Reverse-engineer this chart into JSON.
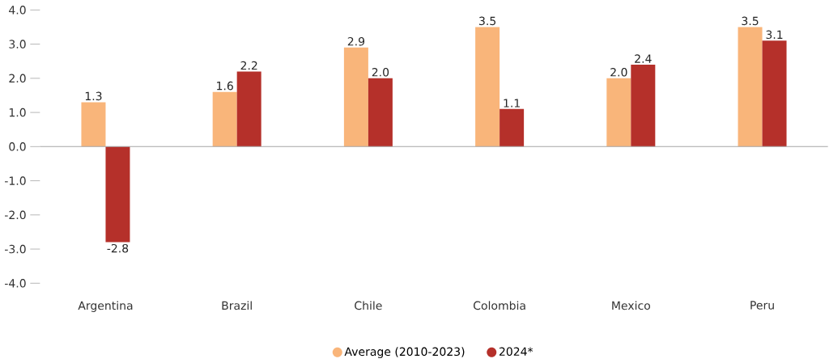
{
  "chart_data": {
    "type": "bar",
    "categories": [
      "Argentina",
      "Brazil",
      "Chile",
      "Colombia",
      "Mexico",
      "Peru"
    ],
    "series": [
      {
        "name": "Average (2010-2023)",
        "color": "#f9b57a",
        "values": [
          1.3,
          1.6,
          2.9,
          3.5,
          2.0,
          3.5
        ],
        "value_labels": [
          "1.3",
          "1.6",
          "2.9",
          "3.5",
          "2.0",
          "3.5"
        ]
      },
      {
        "name": "2024*",
        "color": "#b5302a",
        "values": [
          -2.8,
          2.2,
          2.0,
          1.1,
          2.4,
          3.1
        ],
        "value_labels": [
          "-2.8",
          "2.2",
          "2.0",
          "1.1",
          "2.4",
          "3.1"
        ]
      }
    ],
    "ylim": [
      -4.0,
      4.0
    ],
    "yticks": [
      {
        "value": -4,
        "label": "-4.0"
      },
      {
        "value": -3,
        "label": "-3.0"
      },
      {
        "value": -2,
        "label": "-2.0"
      },
      {
        "value": -1,
        "label": "-1.0"
      },
      {
        "value": 0,
        "label": "0.0"
      },
      {
        "value": 1,
        "label": "1.0"
      },
      {
        "value": 2,
        "label": "2.0"
      },
      {
        "value": 3,
        "label": "3.0"
      },
      {
        "value": 4,
        "label": "4.0"
      }
    ],
    "legend": "bottom"
  }
}
